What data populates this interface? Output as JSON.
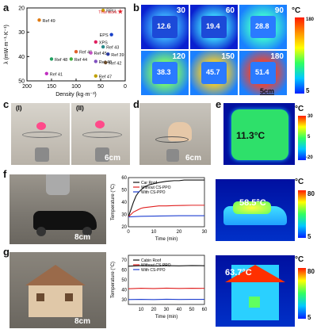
{
  "panels": {
    "a": "a",
    "b": "b",
    "c": "c",
    "d": "d",
    "e": "e",
    "f": "f",
    "g": "g"
  },
  "panel_a": {
    "chart_data": {
      "type": "scatter",
      "xlabel": "Density (kg·m⁻³)",
      "ylabel": "λ (mW·m⁻¹·K⁻¹)",
      "xlim": [
        200,
        0
      ],
      "ylim": [
        50,
        20
      ],
      "xticks": [
        "200",
        "150",
        "100",
        "50",
        "0"
      ],
      "yticks": [
        "20",
        "30",
        "40",
        "50"
      ],
      "points": [
        {
          "label": "RPU",
          "x": 45,
          "y": 21,
          "color": "#c8a000"
        },
        {
          "label": "This work",
          "x": 10,
          "y": 21.5,
          "color": "#e0202a"
        },
        {
          "label": "Ref 49",
          "x": 175,
          "y": 25,
          "color": "#e07a10"
        },
        {
          "label": "EPS",
          "x": 28,
          "y": 31,
          "color": "#1840c8"
        },
        {
          "label": "XPS",
          "x": 60,
          "y": 34,
          "color": "#e02060"
        },
        {
          "label": "Ref 43",
          "x": 45,
          "y": 36,
          "color": "#2a8a8a"
        },
        {
          "label": "Ref 46",
          "x": 100,
          "y": 38,
          "color": "#e0602a"
        },
        {
          "label": "Ref 45",
          "x": 70,
          "y": 38.5,
          "color": "#c050c0"
        },
        {
          "label": "Ref 39",
          "x": 35,
          "y": 39,
          "color": "#2a3aa0"
        },
        {
          "label": "Ref 48",
          "x": 150,
          "y": 41,
          "color": "#20a060"
        },
        {
          "label": "Ref 44",
          "x": 110,
          "y": 41,
          "color": "#40b040"
        },
        {
          "label": "Ref 40",
          "x": 60,
          "y": 42,
          "color": "#8050c0"
        },
        {
          "label": "Ref 42",
          "x": 40,
          "y": 42.5,
          "color": "#6a4a2a"
        },
        {
          "label": "Ref 41",
          "x": 160,
          "y": 47,
          "color": "#c030c0"
        },
        {
          "label": "Ref 47",
          "x": 60,
          "y": 48,
          "color": "#c0a000"
        }
      ]
    }
  },
  "panel_b": {
    "tiles": [
      {
        "time": "30",
        "temp": "12.6"
      },
      {
        "time": "60",
        "temp": "19.4"
      },
      {
        "time": "90",
        "temp": "28.8"
      },
      {
        "time": "120",
        "temp": "38.3"
      },
      {
        "time": "150",
        "temp": "45.7"
      },
      {
        "time": "180",
        "temp": "51.4"
      }
    ],
    "scale": "5cm",
    "unit": "°C",
    "cb_max": "180",
    "cb_min": "5"
  },
  "panel_c": {
    "left_label": "(I)",
    "right_label": "(II)",
    "scale": "6cm"
  },
  "panel_d": {
    "scale": "6cm"
  },
  "panel_e": {
    "temp": "11.3°C",
    "unit": "°C",
    "cb_max": "30",
    "cb_mid": "5",
    "cb_min": "-20"
  },
  "panel_f": {
    "scale": "8cm",
    "thermo_temp": "58.5°C",
    "unit": "°C",
    "cb_max": "80",
    "cb_min": "5",
    "chart_data": {
      "type": "line",
      "xlabel": "Time (min)",
      "ylabel": "Temperature (°C)",
      "xlim": [
        0,
        30
      ],
      "ylim": [
        20,
        60
      ],
      "xticks": [
        "0",
        "10",
        "20",
        "30"
      ],
      "yticks": [
        "20",
        "30",
        "40",
        "50",
        "60"
      ],
      "series": [
        {
          "name": "Car Roof",
          "color": "#111111",
          "x": [
            0,
            1,
            2,
            3,
            4,
            5,
            6,
            8,
            10,
            12,
            15,
            18,
            20,
            22,
            25,
            28,
            30
          ],
          "y": [
            28,
            34,
            40,
            45,
            48,
            50,
            52,
            54,
            55,
            56,
            57,
            57.5,
            57.5,
            58,
            58,
            58,
            58
          ]
        },
        {
          "name": "Without CS-PPO",
          "color": "#e02020",
          "x": [
            0,
            1,
            2,
            3,
            4,
            5,
            6,
            8,
            10,
            12,
            15,
            18,
            20,
            22,
            25,
            28,
            30
          ],
          "y": [
            28,
            30,
            32,
            33,
            34,
            35,
            35.5,
            36,
            36.5,
            37,
            37,
            37.2,
            37.3,
            37.4,
            37.5,
            37.5,
            37.5
          ]
        },
        {
          "name": "With CS-PPO",
          "color": "#1f3fd0",
          "x": [
            0,
            5,
            10,
            15,
            20,
            25,
            30
          ],
          "y": [
            28,
            28.5,
            28.7,
            28.8,
            29,
            29,
            29
          ]
        }
      ]
    }
  },
  "panel_g": {
    "scale": "8cm",
    "thermo_temp": "63.7°C",
    "unit": "°C",
    "cb_max": "80",
    "cb_min": "5",
    "chart_data": {
      "type": "line",
      "xlabel": "Time (min)",
      "ylabel": "Temperature (°C)",
      "xlim": [
        0,
        60
      ],
      "ylim": [
        25,
        75
      ],
      "xticks": [
        "10",
        "20",
        "30",
        "40",
        "50",
        "60"
      ],
      "yticks": [
        "30",
        "40",
        "50",
        "60",
        "70"
      ],
      "series": [
        {
          "name": "Cabin Roof",
          "color": "#111111",
          "x": [
            0,
            10,
            20,
            30,
            40,
            50,
            60
          ],
          "y": [
            64,
            64.5,
            64.2,
            64.5,
            64.3,
            64.6,
            64.4
          ]
        },
        {
          "name": "Without CS-PPO",
          "color": "#e02020",
          "x": [
            0,
            10,
            20,
            30,
            40,
            50,
            60
          ],
          "y": [
            41,
            41.5,
            41.2,
            41.6,
            41.3,
            41.5,
            41.4
          ]
        },
        {
          "name": "With CS-PPO",
          "color": "#1f3fd0",
          "x": [
            0,
            10,
            20,
            30,
            40,
            50,
            60
          ],
          "y": [
            30,
            30.2,
            30,
            30.3,
            30.1,
            30.2,
            30.2
          ]
        }
      ]
    }
  }
}
